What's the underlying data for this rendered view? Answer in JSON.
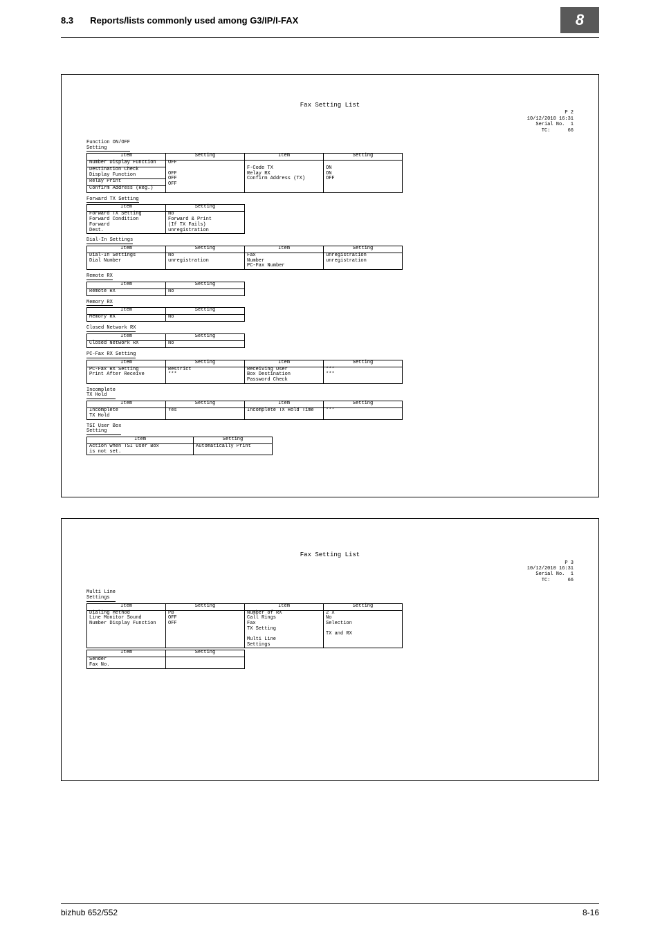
{
  "header": {
    "section_no": "8.3",
    "section_title": "Reports/lists commonly used among G3/IP/I-FAX",
    "tab": "8"
  },
  "footer": {
    "left": "bizhub 652/552",
    "right": "8-16"
  },
  "page1": {
    "title": "Fax Setting List",
    "meta_p": "P  2",
    "meta_date": "10/12/2010 16:31",
    "meta_serial_label": "Serial No.",
    "meta_serial": "1",
    "meta_tc_label": "TC:",
    "meta_tc": "66",
    "col_item": "Item",
    "col_setting": "Setting",
    "sections": {
      "func": {
        "label": "Function ON/OFF\nSetting",
        "left": [
          [
            "Number Display Function",
            "OFF"
          ],
          [
            "Destination Check\nDisplay Function",
            "OFF"
          ],
          [
            "Relay Print",
            "OFF"
          ],
          [
            "Confirm Address (Reg.)",
            "OFF"
          ]
        ],
        "right": [
          [
            "F-Code TX",
            "ON"
          ],
          [
            "Relay RX",
            "ON"
          ],
          [
            "Confirm Address (TX)",
            "OFF"
          ]
        ]
      },
      "fwd": {
        "label": "Forward TX Setting",
        "rows": [
          [
            "Forward TX Setting",
            "No"
          ],
          [
            "Forward Condition",
            "Forward & Print\n(If TX Fails)"
          ],
          [
            "Forward\nDest.",
            "unregistration"
          ]
        ]
      },
      "dialin": {
        "label": "Dial-In Settings",
        "left": [
          [
            "Dial-In Settings",
            "No"
          ],
          [
            "Dial Number",
            "unregistration"
          ]
        ],
        "right": [
          [
            "Fax\nNumber",
            "unregistration"
          ],
          [
            "PC-Fax Number",
            "unregistration"
          ]
        ]
      },
      "remote": {
        "label": "Remote RX",
        "rows": [
          [
            "Remote RX",
            "No"
          ]
        ]
      },
      "memory": {
        "label": "Memory RX",
        "rows": [
          [
            "Memory RX",
            "No"
          ]
        ]
      },
      "closed": {
        "label": "Closed Network RX",
        "rows": [
          [
            "Closed Network RX",
            "No"
          ]
        ]
      },
      "pcfax": {
        "label": "PC-Fax RX Setting",
        "left": [
          [
            "PC-Fax RX Setting",
            "Restrict"
          ],
          [
            "Print After Receive",
            "***"
          ]
        ],
        "right": [
          [
            "Receiving User\nBox Destination",
            "***"
          ],
          [
            "Password Check",
            "***"
          ]
        ]
      },
      "incomp": {
        "label": "Incomplete\nTX Hold",
        "left": [
          [
            "Incomplete\nTX Hold",
            "Yes"
          ]
        ],
        "right": [
          [
            "Incomplete TX Hold Time",
            "***"
          ]
        ]
      },
      "tsi": {
        "label": "TSI User Box\nSetting",
        "rows": [
          [
            "Action when TSI User Box\nis not set.",
            "Automatically Print"
          ]
        ]
      }
    }
  },
  "page2": {
    "title": "Fax Setting List",
    "meta_p": "P  3",
    "meta_date": "10/12/2010 16:31",
    "meta_serial_label": "Serial No.",
    "meta_serial": "1",
    "meta_tc_label": "TC:",
    "meta_tc": "66",
    "col_item": "Item",
    "col_setting": "Setting",
    "multi": {
      "label": "Multi Line\nSettings",
      "left": [
        [
          "Dialing Method",
          "PB"
        ],
        [
          "Line Monitor Sound",
          "OFF"
        ],
        [
          "Number Display Function",
          "OFF"
        ]
      ],
      "right": [
        [
          "Number of RX\nCall Rings",
          "2    X"
        ],
        [
          "Fax\nTX Setting",
          "No\nSelection"
        ],
        [
          "Multi Line\nSettings",
          "TX and RX"
        ]
      ],
      "rows2": [
        [
          "Sender\nFax No.",
          ""
        ]
      ]
    }
  }
}
